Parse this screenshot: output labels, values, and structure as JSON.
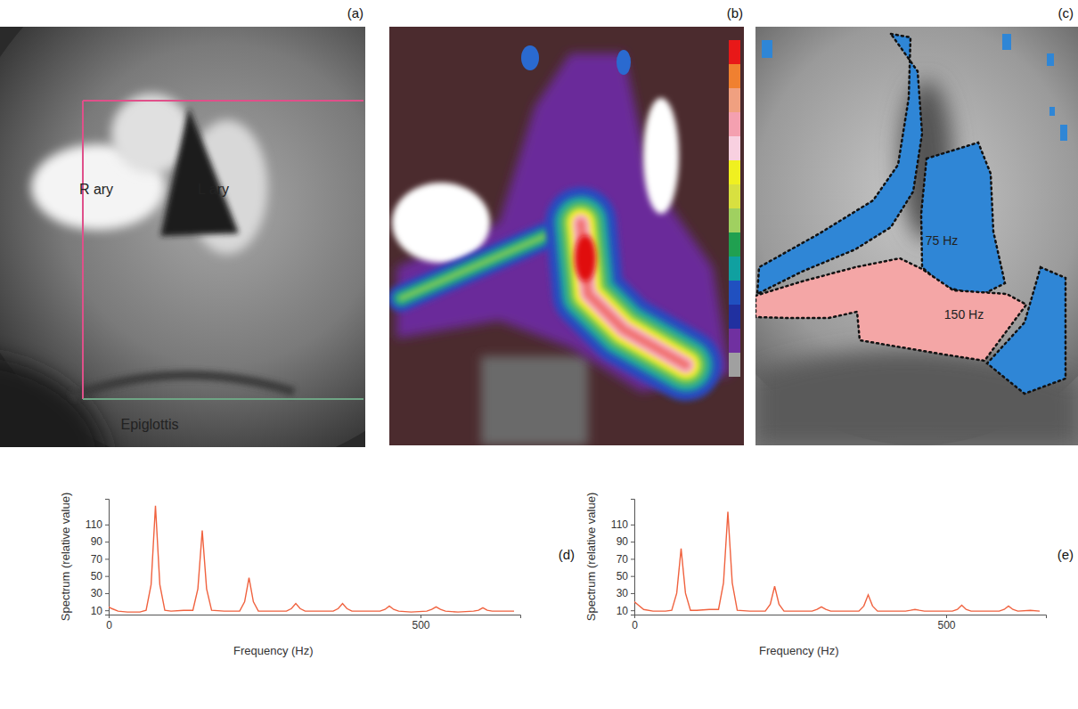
{
  "images": [
    {
      "letter": "(a)",
      "labels": [
        "R ary",
        "L ary",
        "Epiglottis"
      ]
    },
    {
      "letter": "(b)"
    },
    {
      "letter": "(c)",
      "labels": [
        "75 Hz",
        "150 Hz"
      ]
    }
  ],
  "chart_data": [
    {
      "type": "line",
      "title": "(d)",
      "xlabel": "Frequency (Hz)",
      "ylabel": "Spectrum (relative value)",
      "color": "#f0623f",
      "x": [
        0,
        5,
        15,
        30,
        50,
        60,
        68,
        75,
        82,
        90,
        100,
        120,
        135,
        143,
        150,
        157,
        165,
        185,
        210,
        218,
        225,
        232,
        240,
        260,
        285,
        293,
        300,
        307,
        315,
        335,
        360,
        368,
        375,
        382,
        390,
        410,
        435,
        443,
        450,
        457,
        465,
        485,
        510,
        518,
        525,
        532,
        540,
        560,
        585,
        593,
        600,
        607,
        615,
        635,
        650
      ],
      "values": [
        14,
        12,
        9,
        8,
        8,
        10,
        40,
        132,
        40,
        10,
        9,
        10,
        10,
        35,
        103,
        35,
        10,
        9,
        9,
        20,
        48,
        20,
        9,
        9,
        9,
        12,
        18,
        12,
        9,
        9,
        9,
        12,
        18,
        12,
        9,
        9,
        9,
        11,
        15,
        11,
        9,
        8,
        9,
        11,
        14,
        11,
        9,
        8,
        9,
        10,
        13,
        10,
        9,
        9,
        9
      ],
      "xlim": [
        0,
        660
      ],
      "xticks": [
        0,
        500
      ],
      "ylim": [
        5,
        140
      ],
      "yticks": [
        10,
        30,
        50,
        70,
        90,
        110
      ]
    },
    {
      "type": "line",
      "title": "(e)",
      "xlabel": "Frequency (Hz)",
      "ylabel": "Spectrum (relative value)",
      "color": "#f0623f",
      "x": [
        0,
        5,
        15,
        30,
        50,
        60,
        68,
        75,
        82,
        90,
        100,
        120,
        135,
        143,
        150,
        157,
        165,
        185,
        210,
        218,
        225,
        232,
        240,
        260,
        285,
        293,
        300,
        307,
        315,
        335,
        360,
        368,
        375,
        382,
        390,
        410,
        435,
        443,
        450,
        457,
        465,
        485,
        510,
        518,
        525,
        532,
        540,
        560,
        585,
        593,
        600,
        607,
        615,
        635,
        650
      ],
      "values": [
        20,
        17,
        11,
        9,
        9,
        10,
        30,
        82,
        30,
        10,
        10,
        11,
        11,
        42,
        125,
        42,
        10,
        9,
        9,
        17,
        38,
        17,
        9,
        9,
        9,
        11,
        14,
        11,
        9,
        9,
        9,
        15,
        28,
        15,
        9,
        9,
        9,
        10,
        11,
        10,
        9,
        9,
        9,
        11,
        16,
        11,
        9,
        9,
        9,
        11,
        15,
        11,
        9,
        10,
        9
      ],
      "xlim": [
        0,
        660
      ],
      "xticks": [
        0,
        500
      ],
      "ylim": [
        5,
        140
      ],
      "yticks": [
        10,
        30,
        50,
        70,
        90,
        110
      ]
    }
  ]
}
